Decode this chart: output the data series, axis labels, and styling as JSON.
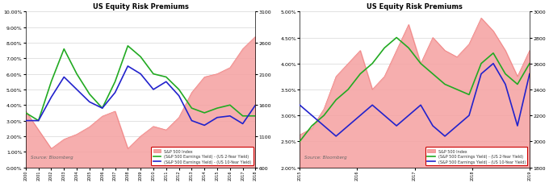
{
  "title": "US Equity Risk Premiums",
  "left_chart": {
    "yleft_min": 0.0,
    "yleft_max": 0.1,
    "yleft_ticks": [
      0.0,
      0.01,
      0.02,
      0.03,
      0.04,
      0.05,
      0.06,
      0.07,
      0.08,
      0.09,
      0.1
    ],
    "yleft_labels": [
      "0.00%",
      "1.00%",
      "2.00%",
      "3.00%",
      "4.00%",
      "5.00%",
      "6.00%",
      "7.00%",
      "8.00%",
      "9.00%",
      "10.00%"
    ],
    "yright_min": 600,
    "yright_max": 3100,
    "yright_ticks": [
      600,
      1100,
      1600,
      2100,
      2600,
      3100
    ],
    "x_years": [
      "2000",
      "2001",
      "2002",
      "2003",
      "2004",
      "2005",
      "2006",
      "2007",
      "2008",
      "2009",
      "2010",
      "2011",
      "2012",
      "2013",
      "2014",
      "2015",
      "2016",
      "2017",
      "2018"
    ],
    "sp500": [
      1500,
      1200,
      900,
      1050,
      1130,
      1250,
      1420,
      1500,
      900,
      1100,
      1257,
      1200,
      1400,
      1800,
      2050,
      2100,
      2200,
      2500,
      2700
    ],
    "erp_2y": [
      0.035,
      0.03,
      0.055,
      0.076,
      0.06,
      0.047,
      0.038,
      0.055,
      0.078,
      0.071,
      0.06,
      0.058,
      0.05,
      0.038,
      0.035,
      0.038,
      0.04,
      0.033,
      0.033
    ],
    "erp_10y": [
      0.03,
      0.03,
      0.045,
      0.058,
      0.05,
      0.042,
      0.038,
      0.048,
      0.065,
      0.06,
      0.05,
      0.055,
      0.046,
      0.03,
      0.027,
      0.032,
      0.033,
      0.028,
      0.04
    ]
  },
  "right_chart": {
    "yleft_min": 0.02,
    "yleft_max": 0.05,
    "yleft_ticks": [
      0.02,
      0.025,
      0.03,
      0.035,
      0.04,
      0.045,
      0.05
    ],
    "yleft_labels": [
      "2.00%",
      "2.50%",
      "3.00%",
      "3.50%",
      "4.00%",
      "4.50%",
      "5.00%"
    ],
    "yright_min": 1800,
    "yright_max": 3000,
    "yright_ticks": [
      1800,
      2000,
      2200,
      2400,
      2600,
      2800,
      3000
    ],
    "x_years": [
      "2015",
      "2016",
      "2017",
      "2018",
      "2019"
    ],
    "sp500": [
      2050,
      2100,
      2250,
      2500,
      2600,
      2700,
      2400,
      2500,
      2700,
      2900,
      2600,
      2800,
      2700,
      2650,
      2750,
      2950,
      2850,
      2700,
      2500,
      2700
    ],
    "erp_2y": [
      0.025,
      0.028,
      0.03,
      0.033,
      0.035,
      0.038,
      0.04,
      0.043,
      0.045,
      0.043,
      0.04,
      0.038,
      0.036,
      0.035,
      0.034,
      0.04,
      0.042,
      0.038,
      0.036,
      0.04
    ],
    "erp_10y": [
      0.032,
      0.03,
      0.028,
      0.026,
      0.028,
      0.03,
      0.032,
      0.03,
      0.028,
      0.03,
      0.032,
      0.028,
      0.026,
      0.028,
      0.03,
      0.038,
      0.04,
      0.036,
      0.028,
      0.038
    ]
  },
  "colors": {
    "sp500_fill": "#f5a0a0",
    "sp500_line": "#f08080",
    "erp_2y": "#22aa22",
    "erp_10y": "#2222cc",
    "legend_box": "#cc0000",
    "source_text": "#666666",
    "title_color": "#000000",
    "background": "#ffffff",
    "grid_color": "#cccccc"
  },
  "legend": {
    "sp500_label": "S&P 500 Index",
    "erp_2y_label": "(S&P 500 Earnings Yield) - (US 2-Year Yield)",
    "erp_10y_label": "(S&P 500 Earnings Yield) - (US 10-Year Yield)"
  },
  "source_text": "Source: Bloomberg"
}
